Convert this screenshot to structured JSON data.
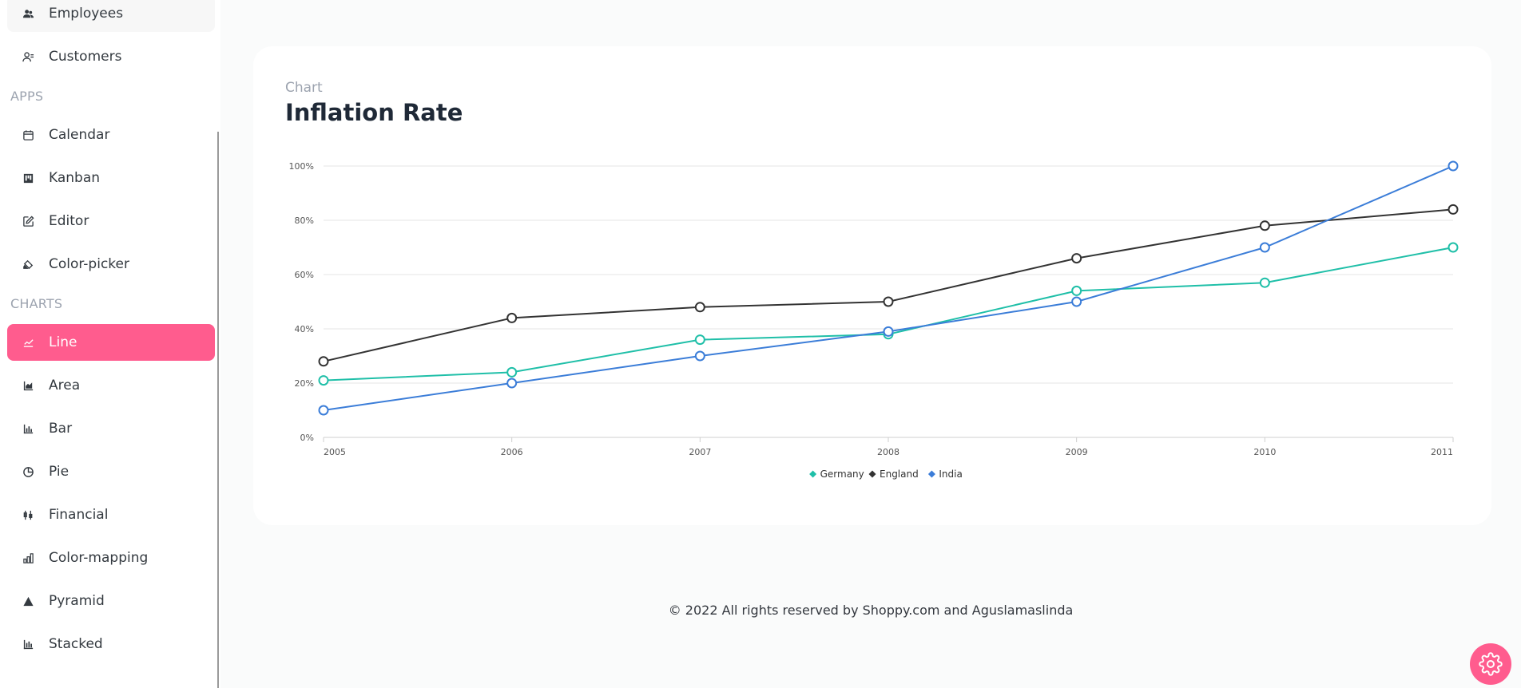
{
  "sidebar": {
    "items_top": [
      {
        "label": "Employees",
        "icon": "employees-icon"
      },
      {
        "label": "Customers",
        "icon": "customers-icon"
      }
    ],
    "sections": [
      {
        "title": "APPS",
        "items": [
          {
            "label": "Calendar",
            "icon": "calendar-icon"
          },
          {
            "label": "Kanban",
            "icon": "kanban-icon"
          },
          {
            "label": "Editor",
            "icon": "editor-icon"
          },
          {
            "label": "Color-picker",
            "icon": "color-picker-icon"
          }
        ]
      },
      {
        "title": "CHARTS",
        "items": [
          {
            "label": "Line",
            "icon": "line-chart-icon"
          },
          {
            "label": "Area",
            "icon": "area-chart-icon"
          },
          {
            "label": "Bar",
            "icon": "bar-chart-icon"
          },
          {
            "label": "Pie",
            "icon": "pie-chart-icon"
          },
          {
            "label": "Financial",
            "icon": "financial-icon"
          },
          {
            "label": "Color-mapping",
            "icon": "color-mapping-icon"
          },
          {
            "label": "Pyramid",
            "icon": "pyramid-icon"
          },
          {
            "label": "Stacked",
            "icon": "stacked-icon"
          }
        ]
      }
    ],
    "active_item": "Line"
  },
  "card": {
    "subtitle": "Chart",
    "title": "Inflation Rate"
  },
  "chart_data": {
    "type": "line",
    "title": "Inflation Rate",
    "x": [
      "2005",
      "2006",
      "2007",
      "2008",
      "2009",
      "2010",
      "2011"
    ],
    "ylim": [
      0,
      100
    ],
    "yticks": [
      "0%",
      "20%",
      "40%",
      "60%",
      "80%",
      "100%"
    ],
    "grid": true,
    "legend": "bottom-center",
    "series": [
      {
        "name": "Germany",
        "color": "#1fbfa8",
        "values": [
          21,
          24,
          36,
          38,
          54,
          57,
          70
        ]
      },
      {
        "name": "England",
        "color": "#333333",
        "values": [
          28,
          44,
          48,
          50,
          66,
          78,
          84
        ]
      },
      {
        "name": "India",
        "color": "#3b7dd8",
        "values": [
          10,
          20,
          30,
          39,
          50,
          70,
          100
        ]
      }
    ]
  },
  "footer": {
    "text": "© 2022 All rights reserved by Shoppy.com and Aguslamaslinda"
  },
  "colors": {
    "accent": "#ff5c8e"
  }
}
